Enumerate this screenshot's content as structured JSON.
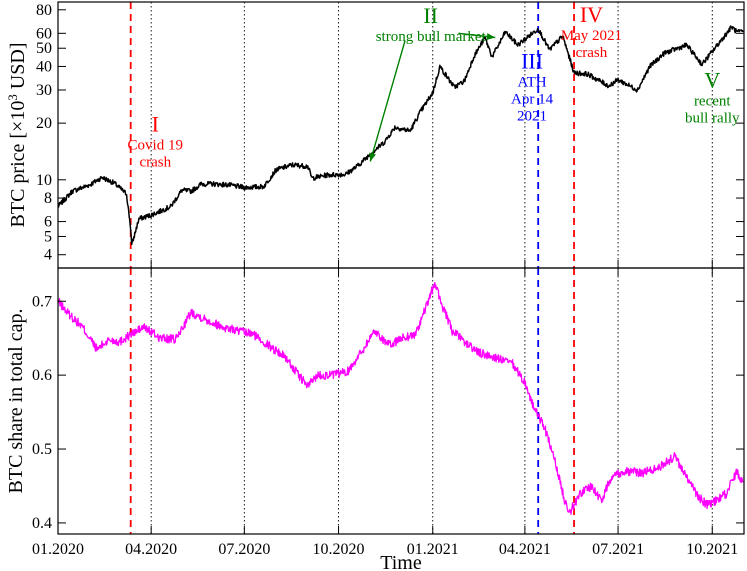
{
  "chart_data": [
    {
      "type": "line",
      "ylabel_pre": "BTC price [×10",
      "ylabel_sup": "3",
      "ylabel_post": " USD]",
      "yscale": "log",
      "ylim": [
        3.4,
        88
      ],
      "yticks": [
        4,
        5,
        6,
        8,
        10,
        20,
        30,
        40,
        50,
        60,
        80
      ],
      "series": [
        {
          "color": "#000000",
          "points": [
            [
              "2020-01-01",
              7.2
            ],
            [
              "2020-01-15",
              8.7
            ],
            [
              "2020-02-01",
              9.4
            ],
            [
              "2020-02-13",
              10.3
            ],
            [
              "2020-02-25",
              9.6
            ],
            [
              "2020-03-08",
              8.4
            ],
            [
              "2020-03-12",
              5.5
            ],
            [
              "2020-03-13",
              4.5
            ],
            [
              "2020-03-20",
              6.2
            ],
            [
              "2020-04-01",
              6.5
            ],
            [
              "2020-04-20",
              7.2
            ],
            [
              "2020-05-01",
              8.8
            ],
            [
              "2020-05-10",
              8.7
            ],
            [
              "2020-05-20",
              9.5
            ],
            [
              "2020-06-01",
              9.5
            ],
            [
              "2020-06-15",
              9.4
            ],
            [
              "2020-07-01",
              9.1
            ],
            [
              "2020-07-20",
              9.2
            ],
            [
              "2020-08-01",
              11.3
            ],
            [
              "2020-08-17",
              12.0
            ],
            [
              "2020-09-01",
              11.8
            ],
            [
              "2020-09-05",
              10.2
            ],
            [
              "2020-09-20",
              10.6
            ],
            [
              "2020-10-08",
              10.7
            ],
            [
              "2020-10-20",
              11.9
            ],
            [
              "2020-11-01",
              13.7
            ],
            [
              "2020-11-15",
              15.9
            ],
            [
              "2020-11-25",
              19.0
            ],
            [
              "2020-12-10",
              18.2
            ],
            [
              "2020-12-20",
              23.0
            ],
            [
              "2021-01-01",
              29.0
            ],
            [
              "2021-01-08",
              40.0
            ],
            [
              "2021-01-22",
              31.0
            ],
            [
              "2021-02-01",
              33.5
            ],
            [
              "2021-02-10",
              45.0
            ],
            [
              "2021-02-21",
              57.0
            ],
            [
              "2021-02-28",
              45.0
            ],
            [
              "2021-03-13",
              61.0
            ],
            [
              "2021-03-25",
              52.0
            ],
            [
              "2021-04-14",
              63.5
            ],
            [
              "2021-04-25",
              49.0
            ],
            [
              "2021-05-08",
              58.0
            ],
            [
              "2021-05-19",
              37.0
            ],
            [
              "2021-06-01",
              36.5
            ],
            [
              "2021-06-22",
              31.5
            ],
            [
              "2021-07-01",
              34.0
            ],
            [
              "2021-07-20",
              30.0
            ],
            [
              "2021-08-01",
              40.0
            ],
            [
              "2021-08-15",
              47.0
            ],
            [
              "2021-09-06",
              52.0
            ],
            [
              "2021-09-21",
              41.0
            ],
            [
              "2021-10-01",
              48.0
            ],
            [
              "2021-10-15",
              60.0
            ],
            [
              "2021-10-20",
              65.0
            ],
            [
              "2021-10-25",
              61.0
            ],
            [
              "2021-10-31",
              61.0
            ]
          ]
        }
      ]
    },
    {
      "type": "line",
      "ylabel": "BTC share in total cap.",
      "ylim": [
        0.385,
        0.745
      ],
      "yticks": [
        0.4,
        0.5,
        0.6,
        0.7
      ],
      "series": [
        {
          "color": "#ff00ff",
          "points": [
            [
              "2020-01-01",
              0.7
            ],
            [
              "2020-01-10",
              0.685
            ],
            [
              "2020-01-25",
              0.665
            ],
            [
              "2020-02-08",
              0.635
            ],
            [
              "2020-02-20",
              0.648
            ],
            [
              "2020-03-01",
              0.645
            ],
            [
              "2020-03-12",
              0.655
            ],
            [
              "2020-03-25",
              0.665
            ],
            [
              "2020-04-10",
              0.65
            ],
            [
              "2020-04-25",
              0.648
            ],
            [
              "2020-05-10",
              0.685
            ],
            [
              "2020-05-25",
              0.675
            ],
            [
              "2020-06-10",
              0.665
            ],
            [
              "2020-06-25",
              0.66
            ],
            [
              "2020-07-10",
              0.655
            ],
            [
              "2020-07-25",
              0.64
            ],
            [
              "2020-08-10",
              0.625
            ],
            [
              "2020-08-20",
              0.605
            ],
            [
              "2020-09-01",
              0.585
            ],
            [
              "2020-09-10",
              0.6
            ],
            [
              "2020-09-25",
              0.6
            ],
            [
              "2020-10-10",
              0.605
            ],
            [
              "2020-10-25",
              0.635
            ],
            [
              "2020-11-05",
              0.66
            ],
            [
              "2020-11-20",
              0.64
            ],
            [
              "2020-12-01",
              0.65
            ],
            [
              "2020-12-15",
              0.655
            ],
            [
              "2020-12-25",
              0.69
            ],
            [
              "2021-01-03",
              0.725
            ],
            [
              "2021-01-10",
              0.695
            ],
            [
              "2021-01-20",
              0.66
            ],
            [
              "2021-02-01",
              0.645
            ],
            [
              "2021-02-15",
              0.63
            ],
            [
              "2021-03-01",
              0.625
            ],
            [
              "2021-03-20",
              0.615
            ],
            [
              "2021-04-01",
              0.59
            ],
            [
              "2021-04-10",
              0.555
            ],
            [
              "2021-04-20",
              0.53
            ],
            [
              "2021-05-01",
              0.48
            ],
            [
              "2021-05-10",
              0.43
            ],
            [
              "2021-05-15",
              0.415
            ],
            [
              "2021-05-25",
              0.44
            ],
            [
              "2021-06-05",
              0.45
            ],
            [
              "2021-06-15",
              0.43
            ],
            [
              "2021-06-25",
              0.465
            ],
            [
              "2021-07-10",
              0.47
            ],
            [
              "2021-07-25",
              0.468
            ],
            [
              "2021-08-10",
              0.475
            ],
            [
              "2021-08-25",
              0.49
            ],
            [
              "2021-09-05",
              0.465
            ],
            [
              "2021-09-15",
              0.44
            ],
            [
              "2021-09-25",
              0.425
            ],
            [
              "2021-10-05",
              0.43
            ],
            [
              "2021-10-15",
              0.44
            ],
            [
              "2021-10-25",
              0.47
            ],
            [
              "2021-10-31",
              0.455
            ]
          ]
        }
      ]
    }
  ],
  "x_axis": {
    "label": "Time",
    "xlim": [
      "2020-01-01",
      "2021-11-01"
    ],
    "ticks": [
      {
        "date": "2020-01-01",
        "label": "01.2020"
      },
      {
        "date": "2020-04-01",
        "label": "04.2020"
      },
      {
        "date": "2020-07-01",
        "label": "07.2020"
      },
      {
        "date": "2020-10-01",
        "label": "10.2020"
      },
      {
        "date": "2021-01-01",
        "label": "01.2021"
      },
      {
        "date": "2021-04-01",
        "label": "04.2021"
      },
      {
        "date": "2021-07-01",
        "label": "07.2021"
      },
      {
        "date": "2021-10-01",
        "label": "10.2021"
      }
    ],
    "dotted_gridlines": [
      "2020-04-01",
      "2020-07-01",
      "2020-10-01",
      "2021-01-01",
      "2021-04-01",
      "2021-07-01",
      "2021-10-01"
    ]
  },
  "event_lines": [
    {
      "date": "2020-03-12",
      "color": "#ff0000"
    },
    {
      "date": "2021-04-14",
      "color": "#0000ff"
    },
    {
      "date": "2021-05-19",
      "color": "#ff0000"
    }
  ],
  "annotations": [
    {
      "roman": "I",
      "lines": [
        "Covid 19",
        "crash"
      ],
      "color": "#ff0000",
      "date": "2020-04-05",
      "price": 18,
      "anchor": "middle"
    },
    {
      "roman": "II",
      "lines": [
        "strong bull market"
      ],
      "color": "#008000",
      "date": "2020-12-30",
      "price": 68,
      "anchor": "middle"
    },
    {
      "roman": "III",
      "lines": [
        "ATH",
        "Apr 14",
        "2021"
      ],
      "color": "#0000ff",
      "date": "2021-04-08",
      "price": 39,
      "anchor": "middle"
    },
    {
      "roman": "IV",
      "lines": [
        "May 2021",
        "crash"
      ],
      "color": "#ff0000",
      "date": "2021-06-05",
      "price": 69,
      "anchor": "middle"
    },
    {
      "roman": "V",
      "lines": [
        "recent",
        "bull rally"
      ],
      "color": "#008000",
      "date": "2021-10-01",
      "price": 31,
      "anchor": "middle"
    }
  ],
  "arrows": [
    {
      "color": "#008000",
      "from": [
        "2020-12-05",
        55
      ],
      "to": [
        "2020-11-01",
        12.5
      ]
    },
    {
      "color": "#008000",
      "from": [
        "2021-01-26",
        60
      ],
      "to": [
        "2021-03-03",
        57
      ]
    }
  ]
}
